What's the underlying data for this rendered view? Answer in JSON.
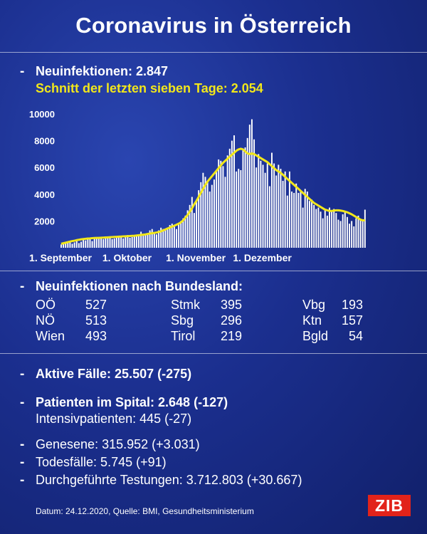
{
  "title": "Coronavirus in Österreich",
  "bullet": "-",
  "new_infections": "Neuinfektionen: 2.847",
  "seven_day_avg": "Schnitt der letzten sieben Tage: 2.054",
  "colors": {
    "background": "#1b2f8f",
    "bars": "#ffffff",
    "average_line": "#f2e71a",
    "brand": "#e2231a"
  },
  "chart_data": {
    "type": "bar",
    "x_start": "2020-09-01",
    "x_tick_labels": [
      "1. September",
      "1. Oktober",
      "1. November",
      "1. Dezember"
    ],
    "ylim": [
      0,
      10000
    ],
    "y_ticks": [
      2000,
      4000,
      6000,
      8000,
      10000
    ],
    "y_tick_labels": [
      "2000",
      "4000",
      "6000",
      "8000",
      "10000"
    ],
    "grid": false,
    "series": [
      {
        "type": "bar",
        "values": [
          250,
          300,
          350,
          380,
          400,
          300,
          400,
          500,
          350,
          450,
          600,
          550,
          700,
          650,
          500,
          700,
          750,
          800,
          700,
          650,
          850,
          800,
          750,
          650,
          700,
          850,
          900,
          800,
          700,
          900,
          950,
          750,
          800,
          900,
          850,
          1000,
          1200,
          900,
          950,
          1100,
          1300,
          1400,
          1100,
          1000,
          1300,
          1500,
          1400,
          1300,
          1500,
          1700,
          1800,
          1600,
          1400,
          1800,
          2000,
          2200,
          2400,
          2800,
          3200,
          3800,
          2600,
          3600,
          4300,
          4900,
          5600,
          5300,
          5000,
          4200,
          4700,
          5100,
          5700,
          6600,
          6500,
          6100,
          5300,
          6900,
          7400,
          8000,
          8400,
          5700,
          5900,
          5800,
          7300,
          7500,
          8200,
          9200,
          9600,
          8100,
          6000,
          7000,
          6500,
          6200,
          5600,
          6300,
          4600,
          7100,
          6300,
          5400,
          6200,
          5900,
          5000,
          5700,
          3900,
          5700,
          4200,
          4100,
          4800,
          4100,
          4300,
          3000,
          4400,
          4200,
          3500,
          3600,
          3200,
          2900,
          3000,
          2700,
          2200,
          2800,
          2400,
          3000,
          2800,
          2900,
          2600,
          2100,
          2000,
          2500,
          2700,
          2300,
          1800,
          2000,
          1600,
          2200,
          2400,
          2100,
          2000,
          2847
        ]
      },
      {
        "type": "line",
        "values": [
          300,
          340,
          380,
          420,
          460,
          500,
          530,
          570,
          600,
          630,
          650,
          670,
          690,
          700,
          720,
          730,
          740,
          740,
          750,
          760,
          770,
          780,
          790,
          800,
          810,
          820,
          830,
          840,
          850,
          860,
          870,
          880,
          890,
          900,
          920,
          940,
          960,
          980,
          1000,
          1030,
          1060,
          1090,
          1110,
          1140,
          1180,
          1230,
          1300,
          1370,
          1440,
          1510,
          1580,
          1650,
          1720,
          1800,
          1900,
          2050,
          2250,
          2450,
          2700,
          2950,
          3250,
          3500,
          3800,
          4100,
          4400,
          4700,
          4950,
          5150,
          5350,
          5550,
          5750,
          5950,
          6150,
          6350,
          6500,
          6650,
          6800,
          6950,
          7100,
          7250,
          7350,
          7400,
          7350,
          7200,
          7050,
          7000,
          7050,
          7000,
          6900,
          6800,
          6700,
          6600,
          6500,
          6400,
          6250,
          6100,
          5950,
          5800,
          5700,
          5600,
          5450,
          5300,
          5150,
          5000,
          4850,
          4700,
          4550,
          4400,
          4250,
          4100,
          3950,
          3800,
          3650,
          3500,
          3350,
          3250,
          3150,
          3050,
          2950,
          2850,
          2800,
          2750,
          2750,
          2780,
          2800,
          2800,
          2780,
          2750,
          2700,
          2650,
          2580,
          2500,
          2400,
          2300,
          2200,
          2100,
          2050,
          2054
        ]
      }
    ]
  },
  "bundesland": {
    "heading": "Neuinfektionen nach Bundesland:",
    "rows": [
      [
        "OÖ",
        "527",
        "Stmk",
        "395",
        "Vbg",
        "193"
      ],
      [
        "NÖ",
        "513",
        "Sbg",
        "296",
        "Ktn",
        "157"
      ],
      [
        "Wien",
        "493",
        "Tirol",
        "219",
        "Bgld",
        "54"
      ]
    ]
  },
  "stats": {
    "active": "Aktive Fälle: 25.507 (-275)",
    "hospital": "Patienten im Spital: 2.648 (-127)",
    "icu": "Intensivpatienten: 445 (-27)",
    "recovered": "Genesene: 315.952 (+3.031)",
    "deaths": "Todesfälle: 5.745 (+91)",
    "tests": "Durchgeführte Testungen: 3.712.803 (+30.667)"
  },
  "footer": "Datum: 24.12.2020, Quelle: BMI, Gesundheitsministerium",
  "logo": "ZIB"
}
